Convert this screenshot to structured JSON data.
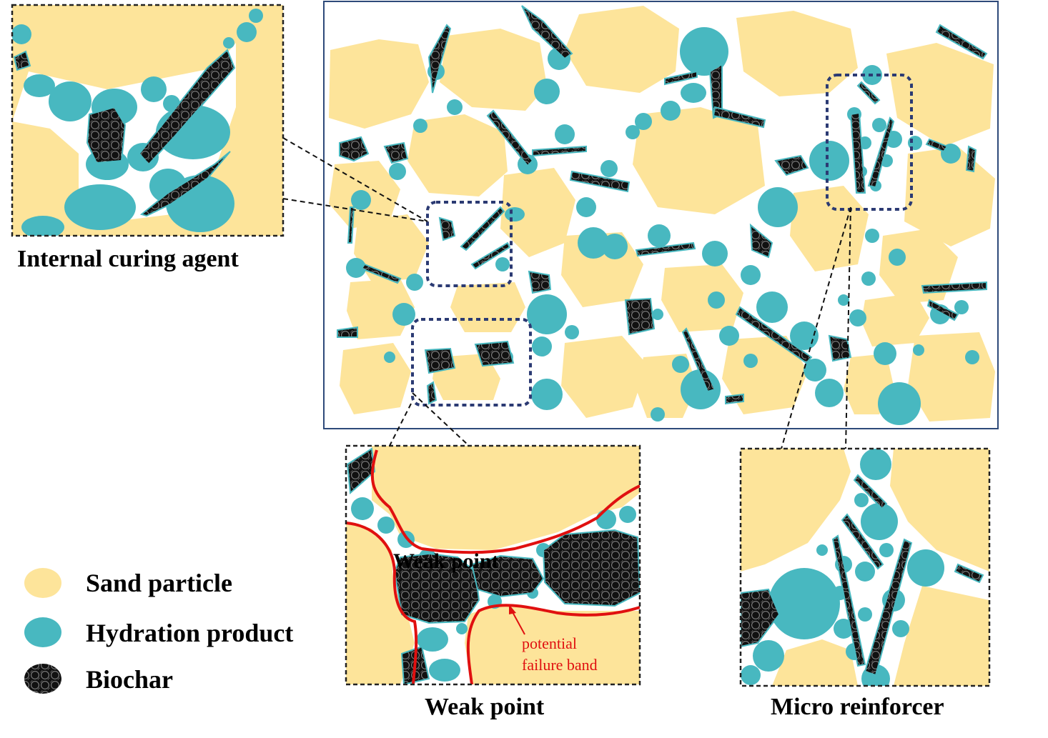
{
  "captions": {
    "internal_curing": "Internal curing agent",
    "weak_point": "Weak point",
    "micro_reinforcer": "Micro reinforcer",
    "weak_point_inset": "Weak point",
    "failure_line1": "potential",
    "failure_line2": "failure band"
  },
  "legend": [
    {
      "label": "Sand particle",
      "kind": "sand",
      "color": "#fde49a"
    },
    {
      "label": "Hydration product",
      "kind": "hydration",
      "color": "#48b8c0"
    },
    {
      "label": "Biochar",
      "kind": "biochar",
      "color": "#1a1a1a"
    }
  ],
  "colors": {
    "sand": "#fde49a",
    "hydration": "#48b8c0",
    "biochar": "#1a1a1a",
    "frame": "#2e4a7a",
    "zoom_box": "#2b3a73",
    "failure": "#e01010"
  }
}
